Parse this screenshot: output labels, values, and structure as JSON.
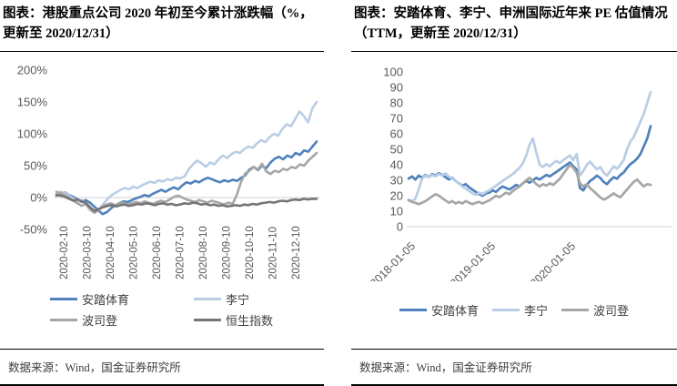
{
  "left": {
    "title": "图表：港股重点公司 2020 年初至今累计涨跌幅（%，更新至 2020/12/31）",
    "source": "数据来源：Wind，国金证券研究所"
  },
  "right": {
    "title": "图表：安踏体育、李宁、申洲国际近年来 PE 估值情况（TTM，更新至 2020/12/31）",
    "source": "数据来源：Wind，国金证券研究所"
  },
  "chart_data": [
    {
      "type": "line",
      "title": "港股重点公司2020年初至今累计涨跌幅（%）",
      "xlabel": "",
      "ylabel": "",
      "grid": false,
      "legend_position": "bottom",
      "axis_color": "#d2d2d2",
      "label_color": "#595959",
      "y_axis": {
        "min": -50,
        "max": 200,
        "step": 50,
        "unit": "%",
        "tick_labels": [
          "200%",
          "150%",
          "100%",
          "50%",
          "0%",
          "-50%"
        ]
      },
      "x_axis": {
        "rotation": -90,
        "tick_labels": [
          "2020-02-10",
          "2020-03-10",
          "2020-04-10",
          "2020-05-10",
          "2020-06-10",
          "2020-07-10",
          "2020-08-10",
          "2020-09-10",
          "2020-10-10",
          "2020-11-10",
          "2020-12-10"
        ]
      },
      "series": [
        {
          "name": "安踏体育",
          "color": "#4f81bd",
          "values": [
            3,
            6,
            8,
            4,
            1,
            -3,
            -7,
            -4,
            -8,
            -14,
            -20,
            -26,
            -23,
            -17,
            -12,
            -9,
            -6,
            -7,
            -4,
            -1,
            1,
            4,
            2,
            6,
            9,
            12,
            9,
            13,
            16,
            13,
            19,
            24,
            22,
            26,
            24,
            28,
            31,
            29,
            26,
            24,
            27,
            25,
            28,
            26,
            31,
            35,
            44,
            48,
            43,
            50,
            46,
            55,
            61,
            64,
            60,
            66,
            63,
            70,
            67,
            74,
            72,
            80,
            88
          ]
        },
        {
          "name": "李宁",
          "color": "#b9cde5",
          "values": [
            6,
            9,
            7,
            3,
            -2,
            -7,
            -4,
            -12,
            -20,
            -24,
            -18,
            -10,
            -2,
            4,
            8,
            12,
            15,
            13,
            17,
            15,
            19,
            22,
            25,
            23,
            27,
            25,
            29,
            27,
            31,
            30,
            33,
            44,
            52,
            58,
            54,
            48,
            55,
            52,
            60,
            66,
            62,
            68,
            72,
            70,
            76,
            80,
            78,
            85,
            90,
            87,
            95,
            100,
            97,
            108,
            115,
            112,
            124,
            135,
            128,
            118,
            140,
            150
          ]
        },
        {
          "name": "波司登",
          "color": "#a6a6a6",
          "values": [
            9,
            7,
            4,
            0,
            -5,
            -9,
            -13,
            -10,
            -18,
            -24,
            -20,
            -14,
            -11,
            -9,
            -12,
            -10,
            -8,
            -11,
            -9,
            -7,
            -9,
            -6,
            -8,
            -10,
            -7,
            -5,
            -7,
            -3,
            1,
            3,
            0,
            -3,
            -5,
            -7,
            -4,
            -6,
            -8,
            -5,
            -7,
            -9,
            -11,
            -8,
            -10,
            5,
            25,
            38,
            42,
            48,
            44,
            53,
            41,
            37,
            42,
            40,
            45,
            43,
            48,
            46,
            52,
            50,
            58,
            64,
            70
          ]
        },
        {
          "name": "恒生指数",
          "color": "#757575",
          "values": [
            4,
            3,
            1,
            -2,
            -5,
            -3,
            -6,
            -9,
            -16,
            -21,
            -18,
            -15,
            -13,
            -12,
            -14,
            -12,
            -11,
            -13,
            -12,
            -10,
            -11,
            -9,
            -10,
            -12,
            -10,
            -9,
            -11,
            -10,
            -12,
            -11,
            -9,
            -10,
            -8,
            -9,
            -11,
            -10,
            -12,
            -11,
            -13,
            -12,
            -14,
            -13,
            -12,
            -13,
            -11,
            -12,
            -10,
            -11,
            -9,
            -8,
            -7,
            -8,
            -6,
            -5,
            -6,
            -4,
            -3,
            -4,
            -2,
            -3,
            -2,
            -2
          ]
        }
      ]
    },
    {
      "type": "line",
      "title": "安踏体育、李宁、申洲国际近年来PE估值情况（TTM）",
      "xlabel": "",
      "ylabel": "",
      "grid": false,
      "legend_position": "bottom",
      "axis_color": "#d2d2d2",
      "label_color": "#595959",
      "y_axis": {
        "min": 0,
        "max": 100,
        "step": 10,
        "unit": "",
        "tick_labels": [
          "100",
          "90",
          "80",
          "70",
          "60",
          "50",
          "40",
          "30",
          "20",
          "10",
          "0"
        ]
      },
      "x_axis": {
        "rotation": -45,
        "tick_labels": [
          "2018-01-05",
          "2019-01-05",
          "2020-01-05"
        ]
      },
      "series": [
        {
          "name": "安踏体育",
          "color": "#4f81bd",
          "values": [
            31,
            32.5,
            30.5,
            33,
            31.5,
            33.5,
            32,
            34,
            33,
            34.5,
            33.5,
            32,
            30.5,
            31.5,
            29.5,
            28,
            26.5,
            27.5,
            25.5,
            24,
            22.5,
            21,
            20,
            21.5,
            22,
            23.5,
            22.5,
            24.5,
            26,
            25,
            24,
            25.5,
            27,
            26,
            28,
            29.5,
            28.5,
            30,
            31.5,
            30.5,
            32,
            33.5,
            32.5,
            34,
            35.5,
            37,
            38.5,
            40,
            41.5,
            39,
            37,
            25,
            23.5,
            27,
            29.5,
            31,
            33,
            31.5,
            29,
            27.5,
            30,
            32,
            31,
            33.5,
            35,
            38,
            40.5,
            42,
            44,
            47,
            52,
            57,
            65
          ]
        },
        {
          "name": "李宁",
          "color": "#b9cde5",
          "values": [
            17.5,
            16.5,
            18,
            24,
            31,
            33,
            32,
            33.5,
            32.5,
            34,
            33,
            34.5,
            32.5,
            31,
            29.5,
            28,
            26,
            24.5,
            23,
            21.5,
            20.5,
            22,
            21,
            22.5,
            23.5,
            25,
            26.5,
            28,
            29.5,
            31,
            32.5,
            34,
            36,
            38,
            41,
            46,
            53,
            57,
            48,
            40,
            38.5,
            40.5,
            39,
            41,
            42.5,
            41,
            43,
            44.5,
            46,
            43,
            47,
            33,
            36,
            40,
            42,
            39.5,
            37,
            38.5,
            35,
            33,
            36,
            39,
            37.5,
            40,
            43,
            50,
            55,
            58,
            63,
            68,
            73,
            80,
            87
          ]
        },
        {
          "name": "波司登",
          "color": "#a6a6a6",
          "values": [
            17,
            16,
            15.5,
            14.5,
            15.5,
            16.5,
            18,
            19.5,
            21,
            20,
            18.5,
            17,
            15.5,
            16.5,
            15,
            16,
            15,
            16.5,
            15.5,
            14.5,
            15.5,
            16,
            15,
            16,
            17,
            18.5,
            20,
            19,
            20.5,
            22,
            21,
            23,
            24.5,
            26,
            28,
            30,
            31.5,
            29.5,
            27.5,
            26,
            27.5,
            26.5,
            28,
            27,
            29,
            31,
            34,
            37,
            40,
            38,
            35,
            28,
            26,
            27.5,
            25,
            23,
            21,
            19,
            17.5,
            18.5,
            20,
            21.5,
            20,
            19,
            21.5,
            24,
            26.5,
            29,
            30.5,
            28,
            26,
            27.5,
            27
          ]
        }
      ]
    }
  ]
}
